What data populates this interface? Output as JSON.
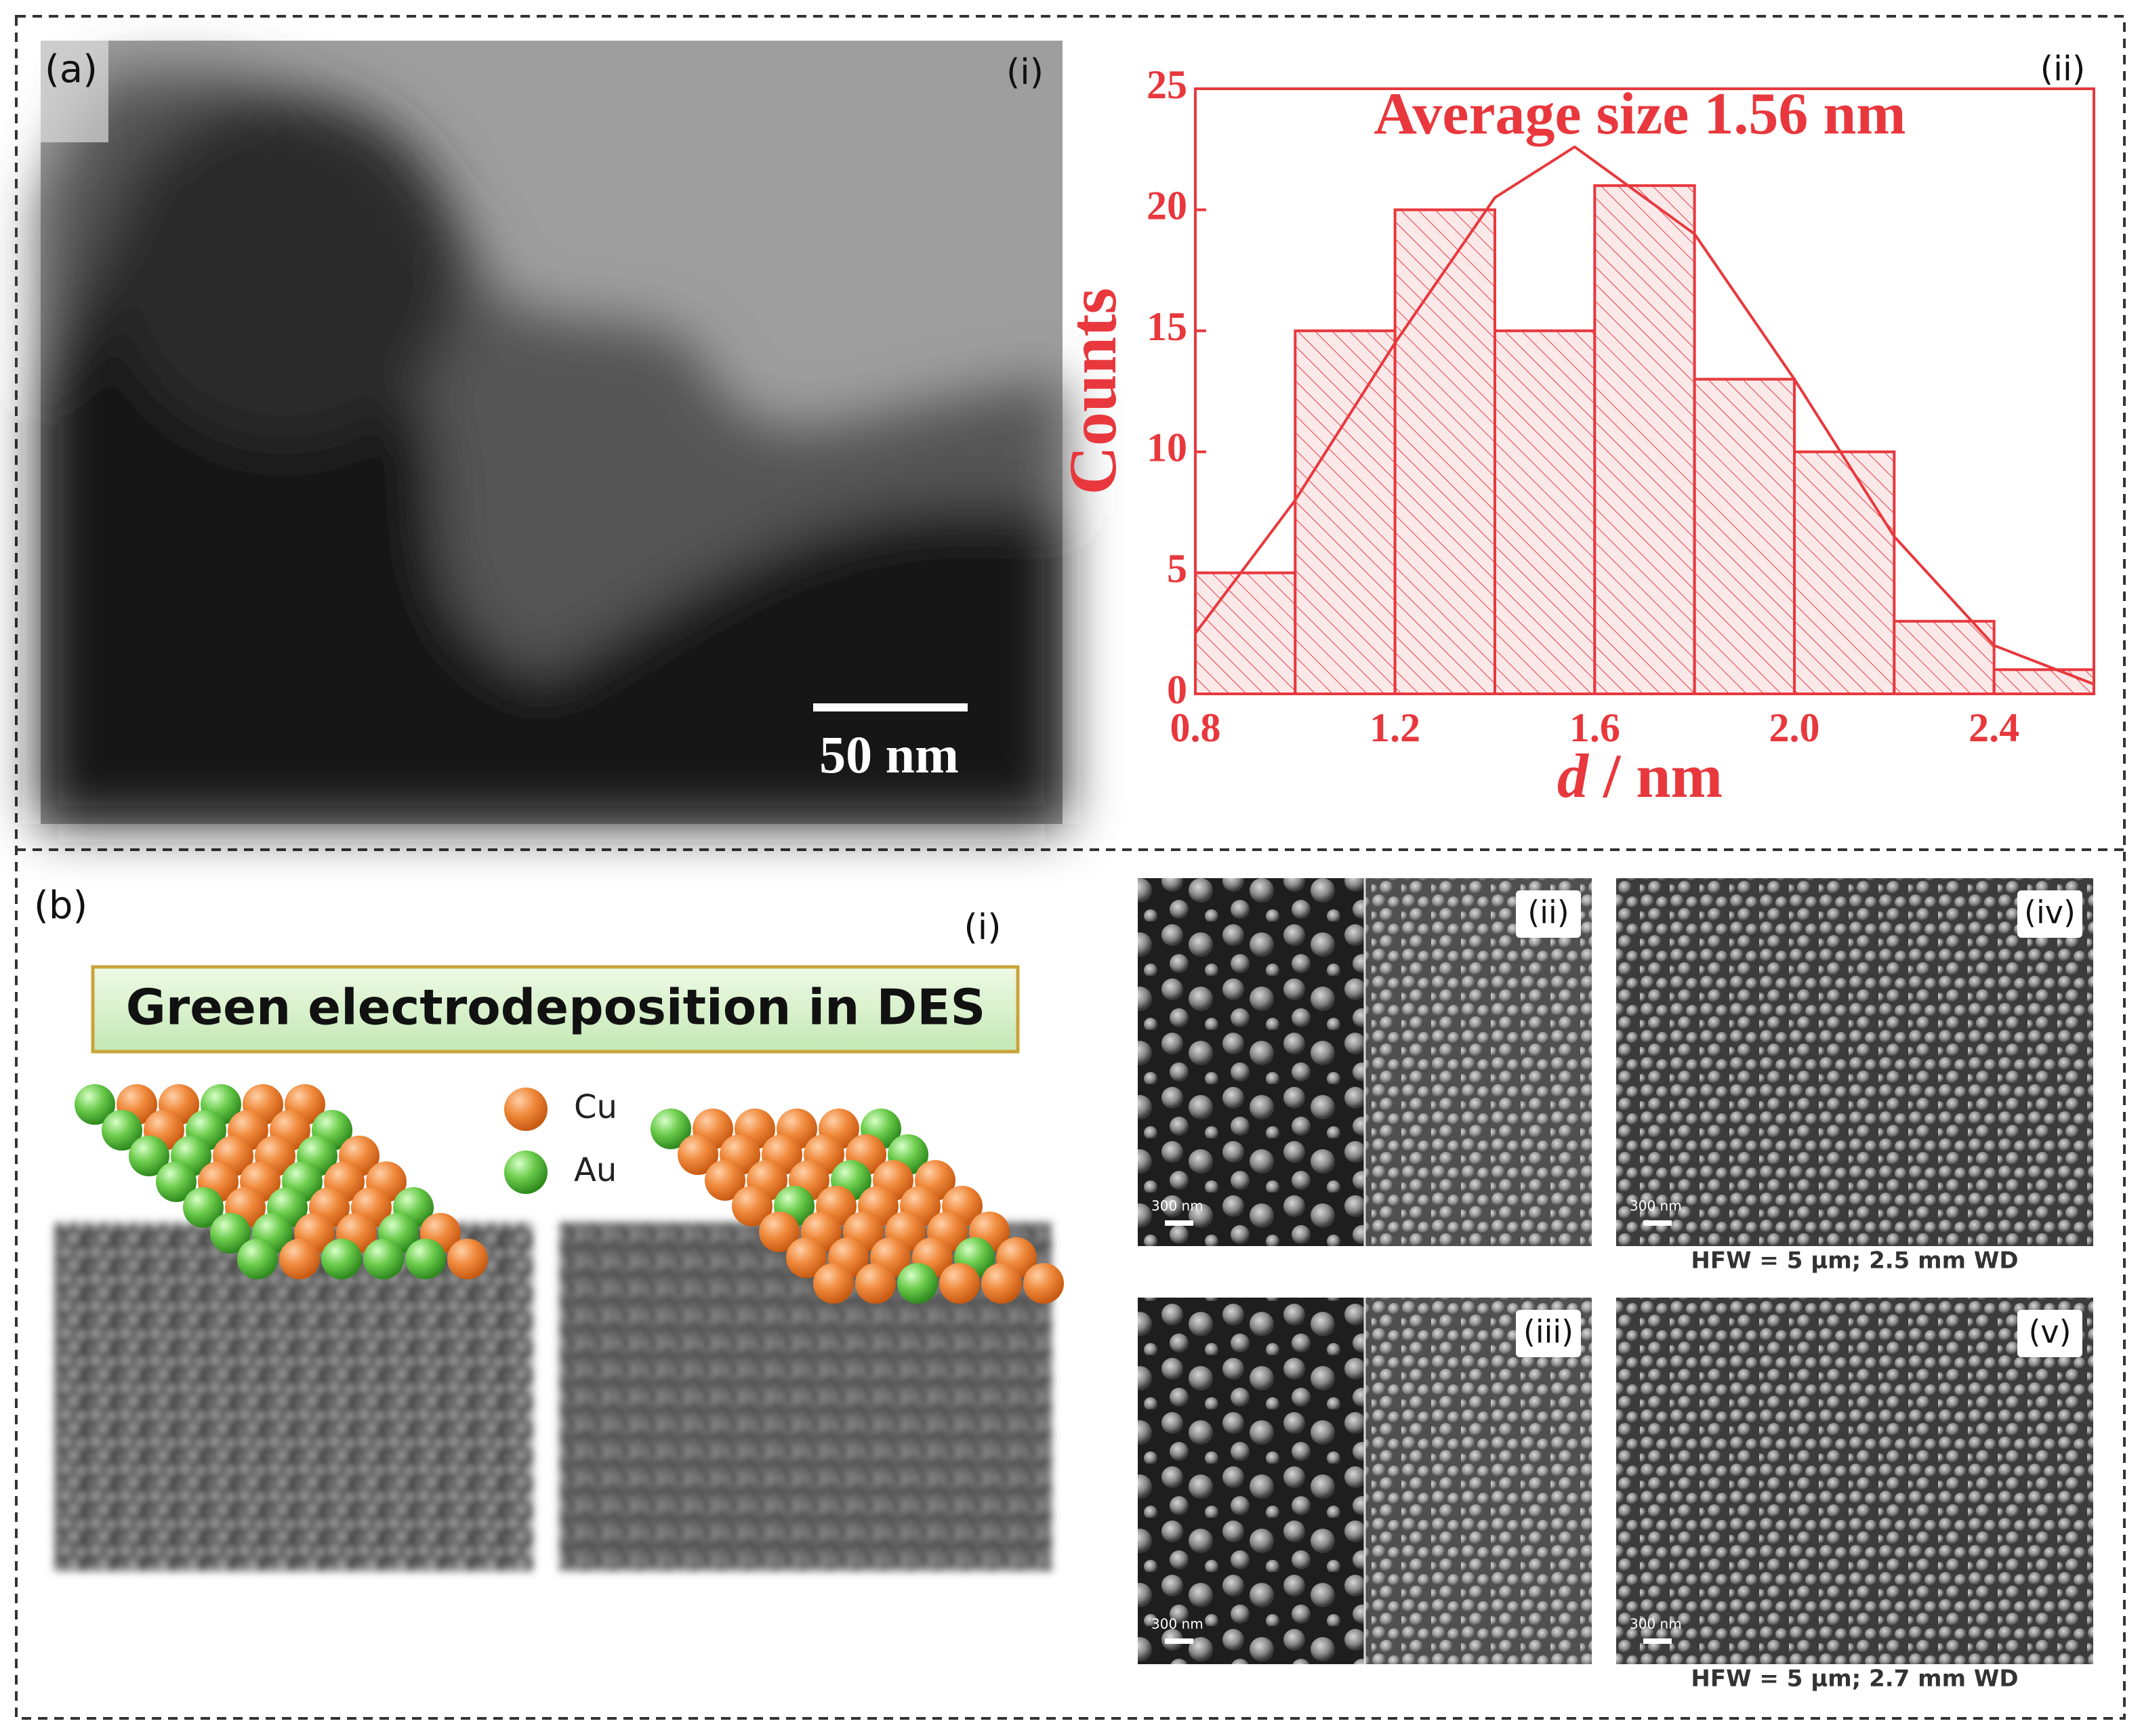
{
  "panel_a": {
    "label": "(a)",
    "image_label": "(i)",
    "scale_bar": "50 nm"
  },
  "chart_data": {
    "type": "histogram",
    "title": "Average size 1.56 nm",
    "panel_label": "(ii)",
    "ylabel": "Counts",
    "xlabel_var": "d",
    "xlabel_unit": "/ nm",
    "bins": [
      0.8,
      1.0,
      1.2,
      1.4,
      1.6,
      1.8,
      2.0,
      2.2,
      2.4,
      2.6
    ],
    "counts": [
      5,
      15,
      20,
      15,
      21,
      13,
      10,
      3,
      1
    ],
    "curve": {
      "x": [
        0.8,
        1.0,
        1.2,
        1.4,
        1.56,
        1.8,
        2.0,
        2.2,
        2.4,
        2.6
      ],
      "values": [
        2.5,
        8,
        14.5,
        20.5,
        22.6,
        19,
        13,
        6.5,
        2,
        0.4
      ]
    },
    "color": "#e8383d",
    "xlim": [
      0.8,
      2.6
    ],
    "xticks": [
      0.8,
      1.2,
      1.6,
      {
        "value": 2,
        "label": "2.0"
      },
      2.4
    ],
    "ylim": [
      0,
      25
    ],
    "yticks": [
      0,
      5,
      10,
      15,
      20,
      25
    ]
  },
  "panel_b": {
    "label": "(b)",
    "schematic_label": "(i)",
    "banner": "Green electrodeposition in DES",
    "legend": [
      "Cu",
      "Au"
    ],
    "images": [
      {
        "label": "(ii)",
        "scale_bar": "300 nm"
      },
      {
        "label": "(iv)",
        "scale_bar": "300 nm",
        "caption": "HFW = 5 µm; 2.5 mm WD"
      },
      {
        "label": "(iii)",
        "scale_bar": "300 nm"
      },
      {
        "label": "(v)",
        "scale_bar": "300 nm",
        "caption": "HFW = 5 µm; 2.7 mm WD"
      }
    ]
  }
}
